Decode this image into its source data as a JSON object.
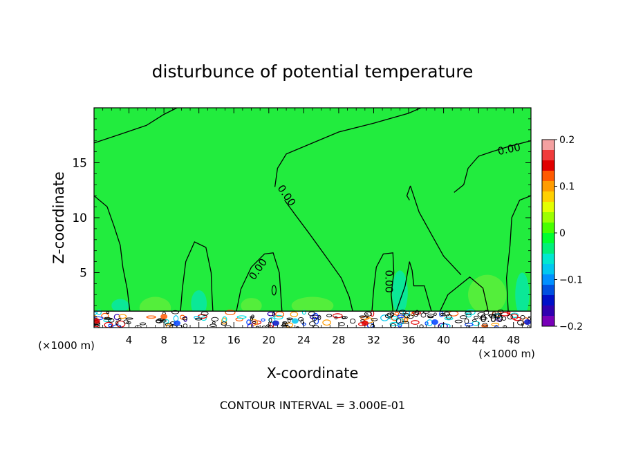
{
  "chart_data": {
    "type": "heatmap",
    "title": "disturbunce of potential temperature",
    "xlabel": "X-coordinate",
    "ylabel": "Z-coordinate",
    "x_unit": "(×1000 m)",
    "z_unit": "(×1000 m)",
    "xlim": [
      0,
      50
    ],
    "ylim": [
      0,
      20
    ],
    "x_ticks": [
      4,
      8,
      12,
      16,
      20,
      24,
      28,
      32,
      36,
      40,
      44,
      48
    ],
    "y_ticks": [
      5,
      10,
      15
    ],
    "colorbar": {
      "range": [
        -0.2,
        0.2
      ],
      "ticks": [
        0.2,
        0.1,
        0,
        -0.1,
        -0.2
      ],
      "tick_labels": [
        "0.2",
        "0.1",
        "0",
        "−0.1",
        "−0.2"
      ],
      "colors": [
        "#f4a0a0",
        "#f03b3b",
        "#e00000",
        "#ff5a00",
        "#ff9c00",
        "#ffd000",
        "#e4ff00",
        "#9cff00",
        "#48ff00",
        "#00ff30",
        "#00f07a",
        "#00e8d0",
        "#00c8f0",
        "#0090ff",
        "#0050e0",
        "#0010c8",
        "#3000b0",
        "#7800b8"
      ]
    },
    "contour_labels": [
      "0.00",
      "0.00",
      "0.00",
      "0.00",
      "0.00"
    ],
    "background_value": 0,
    "footer": "CONTOUR INTERVAL = 3.000E-01"
  },
  "colors": {
    "field": "#22ec3e",
    "lighter_field": "#70f03a",
    "cyan_patch": "#00e6c8"
  }
}
